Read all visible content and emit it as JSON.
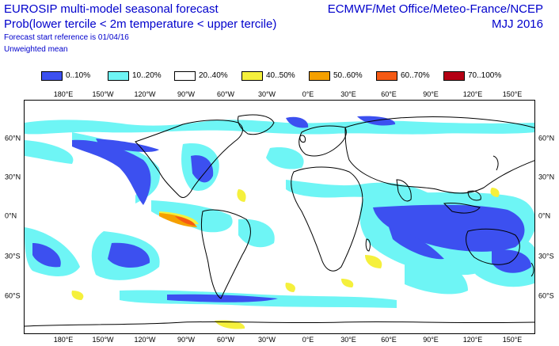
{
  "header": {
    "title": "EUROSIP multi-model seasonal forecast",
    "subtitle": "Prob(lower tercile < 2m temperature < upper tercile)",
    "start_reference": "Forecast start reference is 01/04/16",
    "weighting": "Unweighted mean",
    "source": "ECMWF/Met Office/Meteo-France/NCEP",
    "period": "MJJ 2016"
  },
  "legend": [
    {
      "label": "0..10%",
      "color": "#3c50f0"
    },
    {
      "label": "10..20%",
      "color": "#6ef5f5"
    },
    {
      "label": "20..40%",
      "color": "#ffffff"
    },
    {
      "label": "40..50%",
      "color": "#f5f03c"
    },
    {
      "label": "50..60%",
      "color": "#f5a000"
    },
    {
      "label": "60..70%",
      "color": "#f55a14"
    },
    {
      "label": "70..100%",
      "color": "#b40014"
    }
  ],
  "longitude_labels": [
    "180°E",
    "150°W",
    "120°W",
    "90°W",
    "60°W",
    "30°W",
    "0°E",
    "30°E",
    "60°E",
    "90°E",
    "120°E",
    "150°E"
  ],
  "latitude_labels": [
    "60°N",
    "30°N",
    "0°N",
    "30°S",
    "60°S"
  ],
  "colors": {
    "text": "#0000cc",
    "coast": "#000000"
  }
}
